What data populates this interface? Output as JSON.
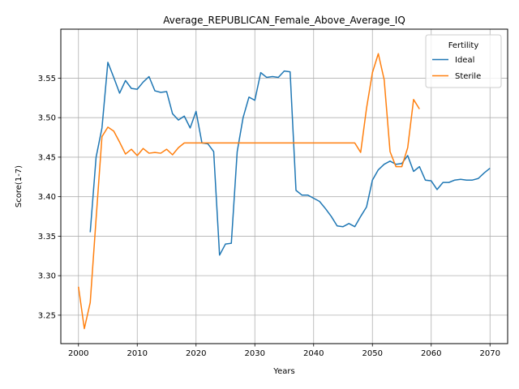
{
  "chart_data": {
    "type": "line",
    "title": "Average_REPUBLICAN_Female_Above_Average_IQ",
    "xlabel": "Years",
    "ylabel": "Score(1-7)",
    "xlim": [
      1997,
      2073
    ],
    "ylim": [
      3.214,
      3.612
    ],
    "xticks": [
      2000,
      2010,
      2020,
      2030,
      2040,
      2050,
      2060,
      2070
    ],
    "yticks": [
      3.25,
      3.3,
      3.35,
      3.4,
      3.45,
      3.5,
      3.55
    ],
    "ytick_labels": [
      "3.25",
      "3.30",
      "3.35",
      "3.40",
      "3.45",
      "3.50",
      "3.55"
    ],
    "grid": true,
    "legend": {
      "title": "Fertility",
      "placement": "top-right"
    },
    "series": [
      {
        "name": "Ideal",
        "color": "#1f77b4",
        "x": [
          2002,
          2003,
          2004,
          2005,
          2006,
          2007,
          2008,
          2009,
          2010,
          2011,
          2012,
          2013,
          2014,
          2015,
          2016,
          2017,
          2018,
          2019,
          2020,
          2021,
          2022,
          2023,
          2024,
          2025,
          2026,
          2027,
          2028,
          2029,
          2030,
          2031,
          2032,
          2033,
          2034,
          2035,
          2036,
          2037,
          2038,
          2039,
          2040,
          2041,
          2042,
          2043,
          2044,
          2045,
          2046,
          2047,
          2048,
          2049,
          2050,
          2051,
          2052,
          2053,
          2054,
          2055,
          2056,
          2057,
          2058,
          2059,
          2060,
          2061,
          2062,
          2063,
          2064,
          2065,
          2066,
          2067,
          2068,
          2069,
          2070
        ],
        "y": [
          3.355,
          3.45,
          3.487,
          3.57,
          3.551,
          3.531,
          3.547,
          3.537,
          3.536,
          3.545,
          3.552,
          3.534,
          3.532,
          3.533,
          3.505,
          3.497,
          3.502,
          3.487,
          3.508,
          3.468,
          3.467,
          3.457,
          3.326,
          3.34,
          3.341,
          3.457,
          3.5,
          3.526,
          3.522,
          3.557,
          3.551,
          3.552,
          3.551,
          3.559,
          3.558,
          3.408,
          3.402,
          3.402,
          3.398,
          3.394,
          3.385,
          3.375,
          3.363,
          3.362,
          3.366,
          3.362,
          3.375,
          3.387,
          3.421,
          3.434,
          3.441,
          3.445,
          3.441,
          3.442,
          3.452,
          3.432,
          3.438,
          3.421,
          3.42,
          3.409,
          3.418,
          3.418,
          3.421,
          3.422,
          3.421,
          3.421,
          3.423,
          3.43,
          3.436
        ]
      },
      {
        "name": "Sterile",
        "color": "#ff7f0e",
        "x": [
          2000,
          2001,
          2002,
          2003,
          2004,
          2005,
          2006,
          2007,
          2008,
          2009,
          2010,
          2011,
          2012,
          2013,
          2014,
          2015,
          2016,
          2017,
          2018,
          2019,
          2020,
          2021,
          2022,
          2023,
          2024,
          2025,
          2026,
          2027,
          2028,
          2029,
          2030,
          2031,
          2032,
          2033,
          2034,
          2035,
          2036,
          2037,
          2038,
          2039,
          2040,
          2041,
          2042,
          2043,
          2044,
          2045,
          2046,
          2047,
          2048,
          2049,
          2050,
          2051,
          2052,
          2053,
          2054,
          2055,
          2056,
          2057,
          2058
        ],
        "y": [
          3.286,
          3.233,
          3.266,
          3.372,
          3.476,
          3.488,
          3.483,
          3.469,
          3.454,
          3.46,
          3.452,
          3.461,
          3.455,
          3.456,
          3.455,
          3.46,
          3.453,
          3.462,
          3.468,
          3.468,
          3.468,
          3.468,
          3.468,
          3.468,
          3.468,
          3.468,
          3.468,
          3.468,
          3.468,
          3.468,
          3.468,
          3.468,
          3.468,
          3.468,
          3.468,
          3.468,
          3.468,
          3.468,
          3.468,
          3.468,
          3.468,
          3.468,
          3.468,
          3.468,
          3.468,
          3.468,
          3.468,
          3.468,
          3.456,
          3.512,
          3.557,
          3.581,
          3.548,
          3.457,
          3.438,
          3.438,
          3.462,
          3.523,
          3.511
        ]
      }
    ]
  }
}
